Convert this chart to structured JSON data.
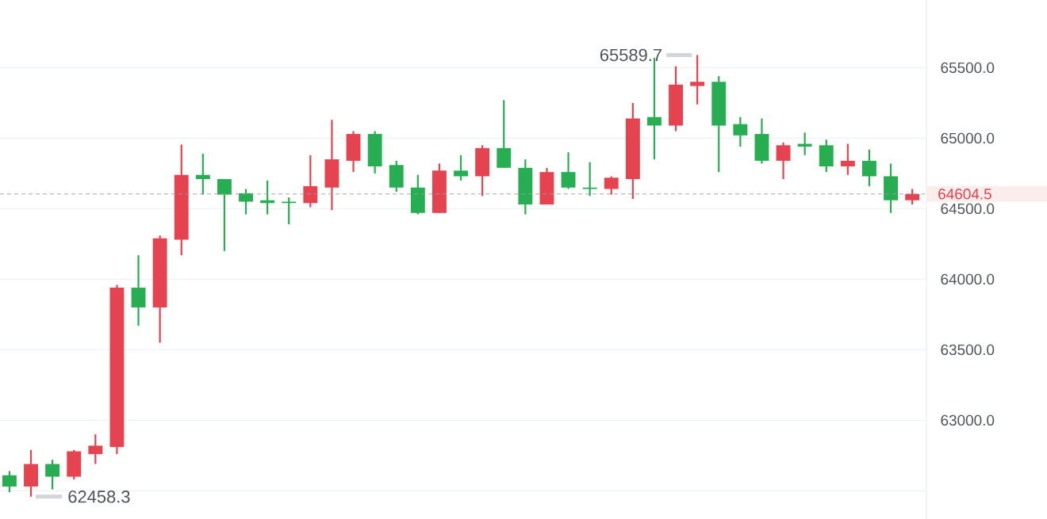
{
  "chart_data": {
    "type": "candlestick",
    "categories": [
      null,
      null,
      null,
      null,
      null,
      null,
      null,
      null,
      null,
      null,
      null,
      null,
      null,
      null,
      null,
      null,
      null,
      null,
      null,
      null,
      null,
      null,
      null,
      null,
      null,
      null,
      null,
      null,
      null,
      null,
      null,
      null,
      null,
      null,
      null,
      null,
      null,
      null,
      null,
      null,
      null,
      null,
      null
    ],
    "ohlc": [
      [
        62610,
        62640,
        62490,
        62530
      ],
      [
        62530,
        62790,
        62458.3,
        62690
      ],
      [
        62690,
        62720,
        62510,
        62600
      ],
      [
        62600,
        62790,
        62580,
        62780
      ],
      [
        62760,
        62900,
        62690,
        62820
      ],
      [
        62810,
        63960,
        62760,
        63940
      ],
      [
        63940,
        64170,
        63670,
        63800
      ],
      [
        63800,
        64310,
        63550,
        64290
      ],
      [
        64280,
        64955,
        64170,
        64740
      ],
      [
        64740,
        64890,
        64600,
        64710
      ],
      [
        64710,
        64710,
        64200,
        64600
      ],
      [
        64610,
        64640,
        64460,
        64550
      ],
      [
        64560,
        64700,
        64460,
        64540
      ],
      [
        64550,
        64580,
        64390,
        64540
      ],
      [
        64540,
        64880,
        64510,
        64660
      ],
      [
        64650,
        65130,
        64490,
        64850
      ],
      [
        64840,
        65050,
        64760,
        65030
      ],
      [
        65030,
        65050,
        64750,
        64800
      ],
      [
        64810,
        64840,
        64620,
        64650
      ],
      [
        64650,
        64740,
        64460,
        64470
      ],
      [
        64470,
        64820,
        64470,
        64770
      ],
      [
        64770,
        64880,
        64700,
        64730
      ],
      [
        64730,
        64950,
        64590,
        64930
      ],
      [
        64930,
        65270,
        64790,
        64790
      ],
      [
        64790,
        64850,
        64460,
        64530
      ],
      [
        64530,
        64790,
        64530,
        64760
      ],
      [
        64760,
        64900,
        64640,
        64650
      ],
      [
        64650,
        64830,
        64590,
        64640
      ],
      [
        64640,
        64730,
        64600,
        64720
      ],
      [
        64710,
        65250,
        64570,
        65140
      ],
      [
        65150,
        65570,
        64850,
        65090
      ],
      [
        65090,
        65510,
        65050,
        65380
      ],
      [
        65370,
        65589.7,
        65240,
        65400
      ],
      [
        65400,
        65440,
        64760,
        65090
      ],
      [
        65100,
        65150,
        64940,
        65020
      ],
      [
        65030,
        65140,
        64820,
        64840
      ],
      [
        64840,
        64970,
        64710,
        64950
      ],
      [
        64960,
        65040,
        64880,
        64940
      ],
      [
        64950,
        64990,
        64760,
        64800
      ],
      [
        64800,
        64960,
        64740,
        64840
      ],
      [
        64840,
        64920,
        64660,
        64730
      ],
      [
        64730,
        64820,
        64470,
        64560
      ],
      [
        64560,
        64640,
        64530,
        64604.5
      ]
    ],
    "colors": [
      "#27ae52",
      "#e5434f",
      "#27ae52",
      "#e5434f",
      "#e5434f",
      "#e5434f",
      "#27ae52",
      "#e5434f",
      "#e5434f",
      "#27ae52",
      "#27ae52",
      "#27ae52",
      "#27ae52",
      "#27ae52",
      "#e5434f",
      "#e5434f",
      "#e5434f",
      "#27ae52",
      "#27ae52",
      "#27ae52",
      "#e5434f",
      "#27ae52",
      "#e5434f",
      "#27ae52",
      "#27ae52",
      "#e5434f",
      "#27ae52",
      "#27ae52",
      "#e5434f",
      "#e5434f",
      "#27ae52",
      "#e5434f",
      "#e5434f",
      "#27ae52",
      "#27ae52",
      "#27ae52",
      "#e5434f",
      "#27ae52",
      "#27ae52",
      "#e5434f",
      "#27ae52",
      "#27ae52",
      "#e5434f"
    ],
    "ylim": [
      62300,
      65980
    ],
    "yticks": [
      {
        "value": 62500,
        "label": null
      },
      {
        "value": 63000,
        "label": "63000.0"
      },
      {
        "value": 63500,
        "label": "63500.0"
      },
      {
        "value": 64000,
        "label": "64000.0"
      },
      {
        "value": 64500,
        "label": "64500.0"
      },
      {
        "value": 65000,
        "label": "65000.0"
      },
      {
        "value": 65500,
        "label": "65500.0"
      }
    ],
    "grid": "y",
    "ref_lines": [
      {
        "axis": "y",
        "value": 64604.5,
        "label": "64604.5",
        "line_style": "dashed"
      }
    ],
    "annotations": [
      "65589.7",
      "62458.3"
    ]
  }
}
